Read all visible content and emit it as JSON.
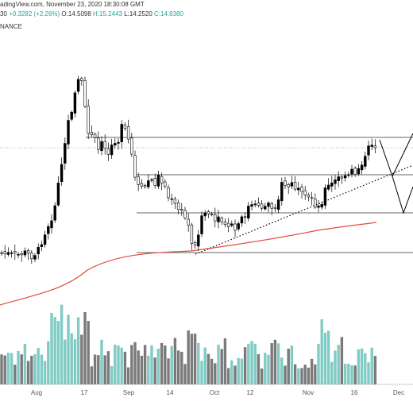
{
  "header": {
    "source": "adingView.com, November 23, 2020 18:30:08 GMT",
    "ohlc_prefix": "30",
    "change": "+0.3282 (+2.26%)",
    "open": "O:14.5098",
    "high": "H:15.2443",
    "low": "L:14.2520",
    "close": "C:14.8380",
    "exchange": "NANCE"
  },
  "chart_data": {
    "type": "candlestick",
    "x_tick_labels": [
      "Aug",
      "17",
      "Sep",
      "14",
      "Oct",
      "12",
      "Nov",
      "16",
      "Dec"
    ],
    "grid": false,
    "colors": {
      "up": "#000000",
      "down": "#ffffff",
      "moving_average": "#e04e3c",
      "volume_teal": "#80cbc4",
      "volume_gray": "#7a7a7a",
      "trendline": "#000000"
    }
  }
}
